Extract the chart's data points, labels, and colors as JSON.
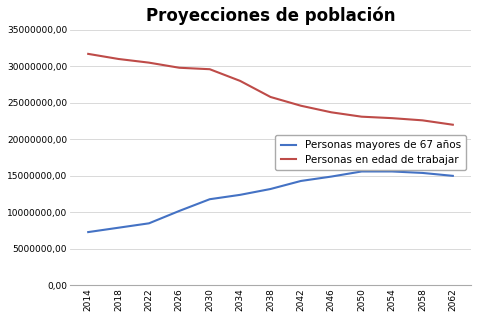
{
  "title": "Proyecciones de población",
  "years": [
    2014,
    2018,
    2022,
    2026,
    2030,
    2034,
    2038,
    2042,
    2046,
    2050,
    2054,
    2058,
    2062
  ],
  "mayores_67": [
    7300000,
    7900000,
    8500000,
    10200000,
    11800000,
    12400000,
    13200000,
    14300000,
    14900000,
    15600000,
    15600000,
    15400000,
    15000000
  ],
  "edad_trabajar": [
    31700000,
    31000000,
    30500000,
    29800000,
    29600000,
    28000000,
    25800000,
    24600000,
    23700000,
    23100000,
    22900000,
    22600000,
    22000000
  ],
  "color_mayores": "#4472C4",
  "color_trabajar": "#BE4B48",
  "ylim": [
    0,
    35000000
  ],
  "yticks": [
    0,
    5000000,
    10000000,
    15000000,
    20000000,
    25000000,
    30000000,
    35000000
  ],
  "legend_mayores": "Personas mayores de 67 años",
  "legend_trabajar": "Personas en edad de trabajar",
  "title_fontsize": 12,
  "tick_fontsize": 6.5,
  "legend_fontsize": 7.5,
  "bg_color": "#ffffff"
}
